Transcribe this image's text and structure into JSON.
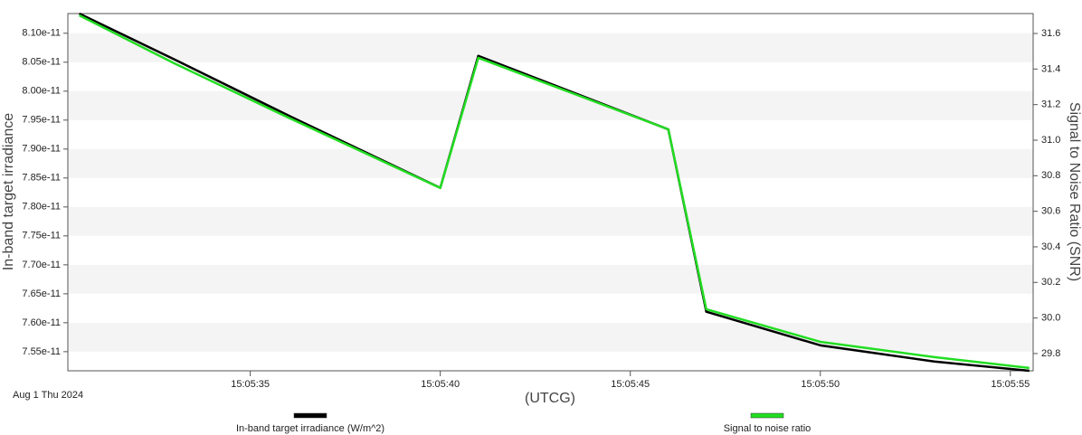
{
  "chart_data": {
    "type": "line",
    "y_label": "In-band target irradiance",
    "y2_label": "Signal to Noise Ratio (SNR)",
    "x_label": "(UTCG)",
    "date_label": "Aug 1 Thu 2024",
    "x": [
      "15:05:30.5",
      "15:05:33",
      "15:05:36",
      "15:05:40",
      "15:05:41",
      "15:05:46",
      "15:05:47",
      "15:05:50",
      "15:05:53",
      "15:05:55.5"
    ],
    "xlim": [
      "15:05:30.2",
      "15:05:55.6"
    ],
    "xticks": [
      "15:05:35",
      "15:05:40",
      "15:05:45",
      "15:05:50",
      "15:05:55"
    ],
    "ylim": [
      7.517e-11,
      8.134e-11
    ],
    "yticks": [
      {
        "value": 7.55e-11,
        "label": "7.55e-11"
      },
      {
        "value": 7.6e-11,
        "label": "7.60e-11"
      },
      {
        "value": 7.65e-11,
        "label": "7.65e-11"
      },
      {
        "value": 7.7e-11,
        "label": "7.70e-11"
      },
      {
        "value": 7.75e-11,
        "label": "7.75e-11"
      },
      {
        "value": 7.8e-11,
        "label": "7.80e-11"
      },
      {
        "value": 7.85e-11,
        "label": "7.85e-11"
      },
      {
        "value": 7.9e-11,
        "label": "7.90e-11"
      },
      {
        "value": 7.95e-11,
        "label": "7.95e-11"
      },
      {
        "value": 8e-11,
        "label": "8.00e-11"
      },
      {
        "value": 8.05e-11,
        "label": "8.05e-11"
      },
      {
        "value": 8.1e-11,
        "label": "8.10e-11"
      }
    ],
    "y2lim": [
      29.703,
      31.712
    ],
    "y2ticks": [
      {
        "value": 29.8,
        "label": "29.8"
      },
      {
        "value": 30,
        "label": "30.0"
      },
      {
        "value": 30.2,
        "label": "30.2"
      },
      {
        "value": 30.4,
        "label": "30.4"
      },
      {
        "value": 30.6,
        "label": "30.6"
      },
      {
        "value": 30.8,
        "label": "30.8"
      },
      {
        "value": 31,
        "label": "31.0"
      },
      {
        "value": 31.2,
        "label": "31.2"
      },
      {
        "value": 31.4,
        "label": "31.4"
      },
      {
        "value": 31.6,
        "label": "31.6"
      }
    ],
    "series": [
      {
        "name": "In-band target irradiance (W/m^2)",
        "color": "#000000",
        "values": [
          8.134e-11,
          8.055e-11,
          7.958e-11,
          7.833e-11,
          8.061e-11,
          7.934e-11,
          7.619e-11,
          7.561e-11,
          7.533e-11,
          7.517e-11
        ]
      },
      {
        "name": "Signal to noise ratio",
        "color": "#22dd22",
        "axis": "y2",
        "values": [
          31.702,
          31.432,
          31.127,
          30.731,
          31.463,
          31.061,
          30.049,
          29.866,
          29.78,
          29.719
        ]
      }
    ]
  }
}
